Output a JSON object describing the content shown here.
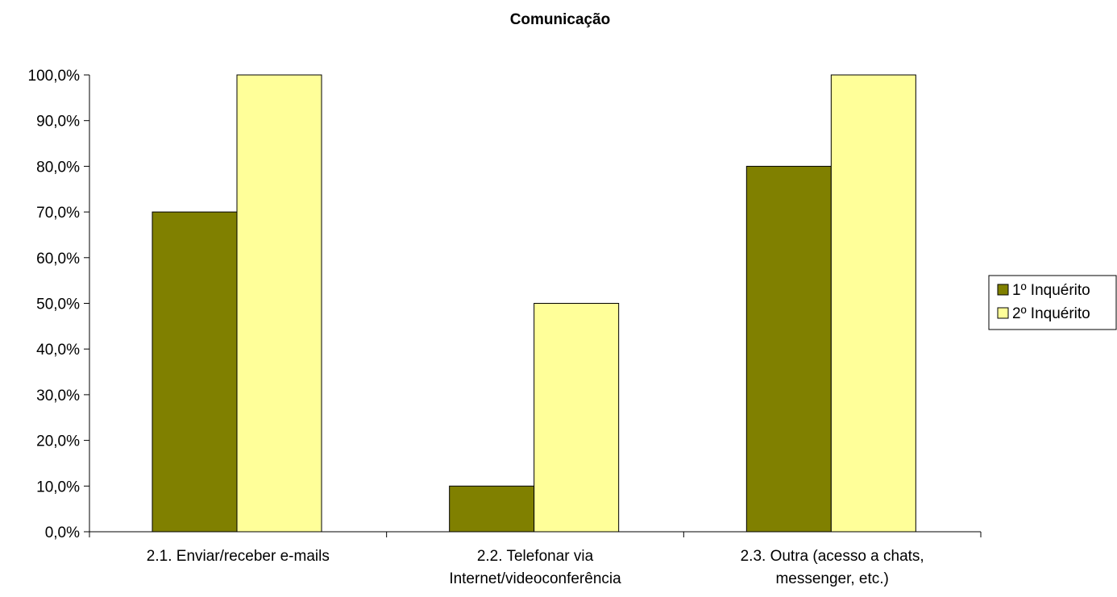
{
  "chart_data": {
    "type": "bar",
    "title": "Comunicação",
    "categories": [
      "2.1. Enviar/receber e-mails",
      "2.2. Telefonar via Internet/videoconferência",
      "2.3. Outra (acesso a chats, messenger, etc.)"
    ],
    "category_lines": [
      [
        "2.1. Enviar/receber e-mails"
      ],
      [
        "2.2. Telefonar via",
        "Internet/videoconferência"
      ],
      [
        "2.3. Outra (acesso a chats,",
        "messenger, etc.)"
      ]
    ],
    "series": [
      {
        "name": "1º Inquérito",
        "values": [
          70,
          10,
          80
        ],
        "color": "#808000"
      },
      {
        "name": "2º Inquérito",
        "values": [
          100,
          50,
          100
        ],
        "color": "#FFFF99"
      }
    ],
    "ylim": [
      0,
      100
    ],
    "ytick_step": 10,
    "ytick_labels": [
      "0,0%",
      "10,0%",
      "20,0%",
      "30,0%",
      "40,0%",
      "50,0%",
      "60,0%",
      "70,0%",
      "80,0%",
      "90,0%",
      "100,0%"
    ],
    "xlabel": "",
    "ylabel": "",
    "grid": false,
    "legend_position": "right"
  }
}
